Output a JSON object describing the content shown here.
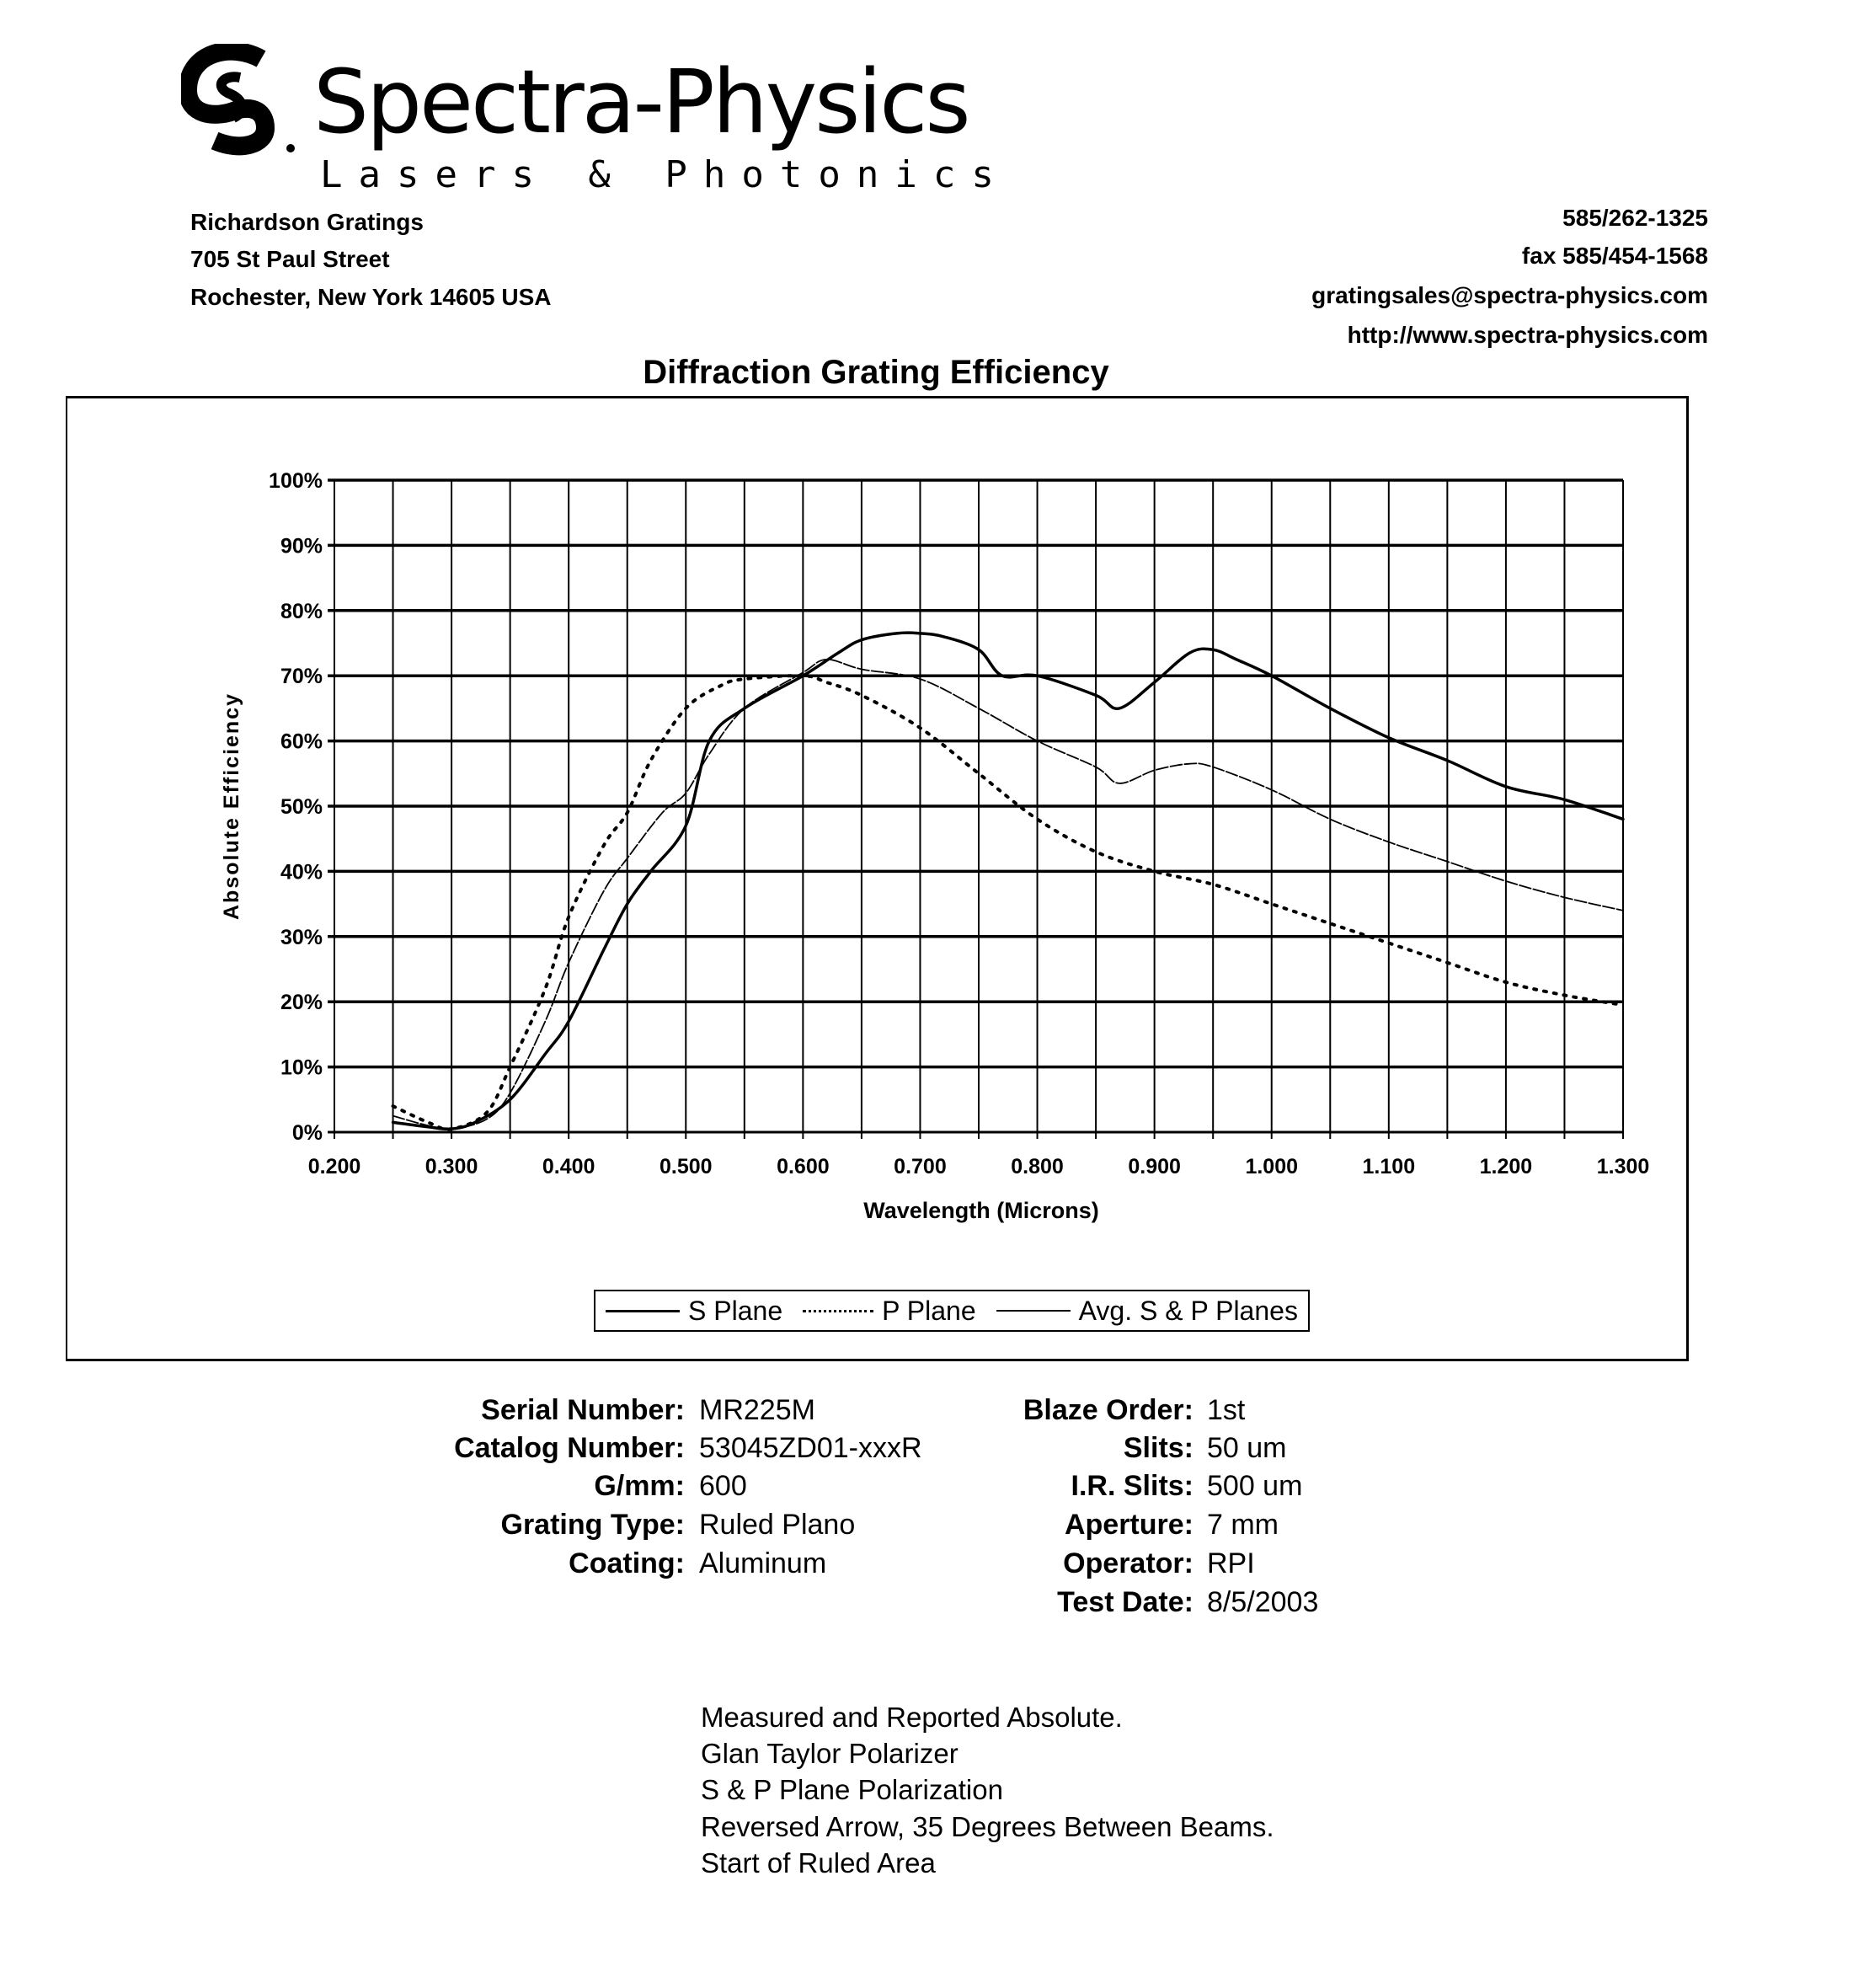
{
  "header": {
    "brand": "Spectra-Physics",
    "tagline": "Lasers & Photonics",
    "address": [
      "Richardson Gratings",
      "705 St Paul Street",
      "Rochester, New York  14605  USA"
    ],
    "contact": [
      "585/262-1325",
      "fax  585/454-1568",
      "gratingsales@spectra-physics.com",
      "http://www.spectra-physics.com"
    ]
  },
  "chart_data": {
    "type": "line",
    "title": "Diffraction Grating Efficiency",
    "xlabel": "Wavelength (Microns)",
    "ylabel": "Absolute Efficiency",
    "xlim": [
      0.2,
      1.3
    ],
    "ylim": [
      0,
      100
    ],
    "x_ticks": [
      "0.200",
      "0.300",
      "0.400",
      "0.500",
      "0.600",
      "0.700",
      "0.800",
      "0.900",
      "1.000",
      "1.100",
      "1.200",
      "1.300"
    ],
    "y_ticks": [
      "0%",
      "10%",
      "20%",
      "30%",
      "40%",
      "50%",
      "60%",
      "70%",
      "80%",
      "90%",
      "100%"
    ],
    "grid": true,
    "legend_position": "bottom",
    "series": [
      {
        "name": "S Plane",
        "style": "solid-thick",
        "x": [
          0.25,
          0.28,
          0.3,
          0.32,
          0.35,
          0.38,
          0.4,
          0.43,
          0.45,
          0.47,
          0.5,
          0.52,
          0.55,
          0.6,
          0.63,
          0.65,
          0.68,
          0.7,
          0.72,
          0.75,
          0.77,
          0.8,
          0.85,
          0.87,
          0.9,
          0.93,
          0.95,
          0.97,
          1.0,
          1.05,
          1.1,
          1.15,
          1.2,
          1.25,
          1.3
        ],
        "y": [
          1.5,
          0.8,
          0.5,
          1.5,
          5,
          12,
          17,
          28,
          35,
          40,
          47,
          60,
          65,
          70,
          73.5,
          75.5,
          76.5,
          76.5,
          76,
          74,
          70,
          70,
          67,
          65,
          69,
          73.5,
          74,
          72.5,
          70,
          65,
          60.5,
          57,
          53,
          51,
          48
        ]
      },
      {
        "name": "P Plane",
        "style": "dotted",
        "x": [
          0.25,
          0.28,
          0.3,
          0.33,
          0.35,
          0.38,
          0.4,
          0.43,
          0.45,
          0.47,
          0.5,
          0.53,
          0.55,
          0.6,
          0.62,
          0.65,
          0.7,
          0.75,
          0.8,
          0.85,
          0.9,
          0.95,
          1.0,
          1.05,
          1.1,
          1.15,
          1.2,
          1.25,
          1.3
        ],
        "y": [
          4,
          1.5,
          0.5,
          3,
          10,
          22,
          33,
          44,
          49,
          57,
          65,
          68.5,
          69.5,
          70,
          69,
          67,
          62,
          55,
          48,
          43,
          40,
          38,
          35,
          32,
          29,
          26,
          23,
          21,
          19.5
        ]
      },
      {
        "name": "Avg. S & P Planes",
        "style": "solid-thin",
        "x": [
          0.25,
          0.28,
          0.3,
          0.33,
          0.35,
          0.38,
          0.4,
          0.43,
          0.45,
          0.48,
          0.5,
          0.52,
          0.55,
          0.6,
          0.62,
          0.65,
          0.7,
          0.75,
          0.8,
          0.85,
          0.87,
          0.9,
          0.93,
          0.95,
          1.0,
          1.05,
          1.1,
          1.15,
          1.2,
          1.25,
          1.3
        ],
        "y": [
          2.5,
          1,
          0.5,
          2,
          6,
          17,
          26,
          37,
          42,
          49,
          52,
          58,
          65,
          70.5,
          72.5,
          71,
          69.5,
          65,
          60,
          56,
          53.5,
          55.5,
          56.5,
          56,
          52.5,
          48,
          44.5,
          41.5,
          38.5,
          36,
          34
        ]
      }
    ]
  },
  "specs_left": [
    {
      "label": "Serial Number:",
      "value": "MR225M"
    },
    {
      "label": "Catalog Number:",
      "value": "53045ZD01-xxxR"
    },
    {
      "label": "G/mm:",
      "value": "600"
    },
    {
      "label": "Grating Type:",
      "value": "Ruled Plano"
    },
    {
      "label": "Coating:",
      "value": "Aluminum"
    }
  ],
  "specs_right": [
    {
      "label": "Blaze Order:",
      "value": "1st"
    },
    {
      "label": "Slits:",
      "value": "50 um"
    },
    {
      "label": "I.R. Slits:",
      "value": "500 um"
    },
    {
      "label": "Aperture:",
      "value": "7 mm"
    },
    {
      "label": "Operator:",
      "value": "RPI"
    },
    {
      "label": "Test Date:",
      "value": "8/5/2003"
    }
  ],
  "notes": [
    "Measured and Reported Absolute.",
    "Glan Taylor Polarizer",
    "S & P Plane Polarization",
    "Reversed Arrow, 35 Degrees Between Beams.",
    "Start of Ruled Area"
  ]
}
